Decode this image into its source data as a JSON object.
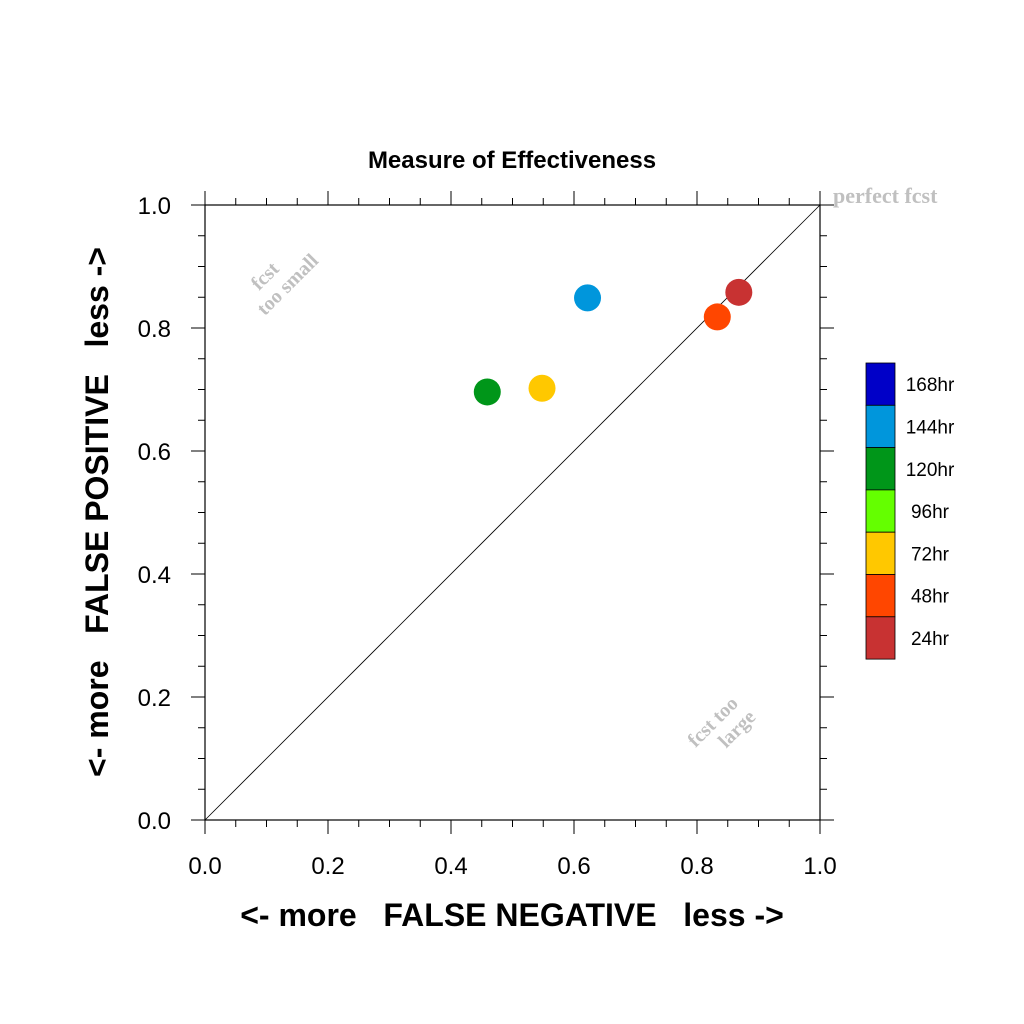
{
  "chart_data": {
    "type": "scatter",
    "title": "Measure of Effectiveness",
    "xlabel": "<- more   FALSE NEGATIVE   less ->",
    "ylabel": "<- more   FALSE POSITIVE   less ->",
    "xlim": [
      0,
      1
    ],
    "ylim": [
      0,
      1
    ],
    "x_ticks": [
      0.0,
      0.2,
      0.4,
      0.6,
      0.8,
      1.0
    ],
    "y_ticks": [
      0.0,
      0.2,
      0.4,
      0.6,
      0.8,
      1.0
    ],
    "x_tick_labels": [
      "0.0",
      "0.2",
      "0.4",
      "0.6",
      "0.8",
      "1.0"
    ],
    "y_tick_labels": [
      "0.0",
      "0.2",
      "0.4",
      "0.6",
      "0.8",
      "1.0"
    ],
    "grid": false,
    "diagonal_line": true,
    "annotations": {
      "perfect": "perfect fcst",
      "small_line1": "fcst",
      "small_line2": "too small",
      "large_line1": "fcst too",
      "large_line2": "large"
    },
    "legend_placement": "right",
    "legend": [
      {
        "label": "168hr",
        "color": "#0000c8"
      },
      {
        "label": "144hr",
        "color": "#0096dc"
      },
      {
        "label": "120hr",
        "color": "#009619"
      },
      {
        "label": "96hr",
        "color": "#64ff00"
      },
      {
        "label": "72hr",
        "color": "#ffc800"
      },
      {
        "label": "48hr",
        "color": "#ff4600"
      },
      {
        "label": "24hr",
        "color": "#c83232"
      }
    ],
    "points": [
      {
        "name": "24hr",
        "x": 0.868,
        "y": 0.858,
        "color": "#c83232"
      },
      {
        "name": "48hr",
        "x": 0.833,
        "y": 0.818,
        "color": "#ff4600"
      },
      {
        "name": "72hr",
        "x": 0.548,
        "y": 0.702,
        "color": "#ffc800"
      },
      {
        "name": "120hr",
        "x": 0.459,
        "y": 0.696,
        "color": "#009619"
      },
      {
        "name": "144hr",
        "x": 0.622,
        "y": 0.849,
        "color": "#0096dc"
      }
    ]
  }
}
